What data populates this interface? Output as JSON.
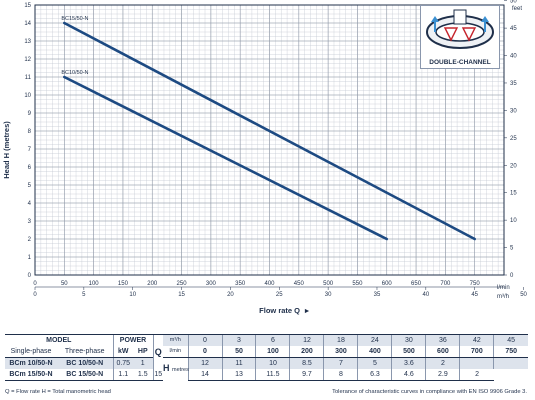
{
  "chart_data": {
    "type": "line",
    "xlabel": "Flow rate Q",
    "ylabel": "Head H (metres)",
    "right_axis_unit": "feet",
    "top_axis_unit": "l/min",
    "bottom_axis_unit": "m³/h",
    "xlim": [
      0,
      800
    ],
    "ylim": [
      0,
      15
    ],
    "x_ticks": [
      0,
      50,
      100,
      150,
      200,
      250,
      300,
      350,
      400,
      450,
      500,
      550,
      600,
      650,
      700,
      750
    ],
    "y_ticks": [
      0,
      1,
      2,
      3,
      4,
      5,
      6,
      7,
      8,
      9,
      10,
      11,
      12,
      13,
      14,
      15
    ],
    "m3h_ticks": [
      0,
      5,
      10,
      15,
      20,
      25,
      30,
      35,
      40,
      45,
      50
    ],
    "feet_ticks": [
      0,
      5,
      10,
      15,
      20,
      25,
      30,
      35,
      40,
      45,
      50
    ],
    "grid": true,
    "series": [
      {
        "name": "BC15/50-N",
        "x": [
          50,
          750
        ],
        "y": [
          14,
          2
        ]
      },
      {
        "name": "BC10/50-N",
        "x": [
          50,
          600
        ],
        "y": [
          11,
          2
        ]
      }
    ],
    "badge_text": "DOUBLE-CHANNEL"
  },
  "table": {
    "model_header": "MODEL",
    "power_header": "POWER",
    "single_phase_header": "Single-phase",
    "three_phase_header": "Three-phase",
    "kw_header": "kW",
    "hp_header": "HP",
    "q_label": "Q",
    "h_label": "H",
    "m3h_unit": "m³/h",
    "lmin_unit": "l/min",
    "metres_unit": "metres",
    "m3h_values": [
      "0",
      "3",
      "6",
      "12",
      "18",
      "24",
      "30",
      "36",
      "42",
      "45"
    ],
    "lmin_values": [
      "0",
      "50",
      "100",
      "200",
      "300",
      "400",
      "500",
      "600",
      "700",
      "750"
    ],
    "rows": [
      {
        "single": "BCm 10/50-N",
        "three": "BC 10/50-N",
        "kw": "0.75",
        "hp": "1",
        "heads": [
          "12",
          "11",
          "10",
          "8.5",
          "7",
          "5",
          "3.6",
          "2",
          "",
          ""
        ]
      },
      {
        "single": "BCm 15/50-N",
        "three": "BC 15/50-N",
        "kw": "1.1",
        "hp": "1.5",
        "heads": [
          "15",
          "14",
          "13",
          "11.5",
          "9.7",
          "8",
          "6.3",
          "4.6",
          "2.9",
          "2"
        ]
      }
    ]
  },
  "footnote_left": "Q = Flow rate  H = Total manometric head",
  "footnote_right": "Tolerance of characteristic curves in compliance with EN ISO 9906 Grade 3."
}
